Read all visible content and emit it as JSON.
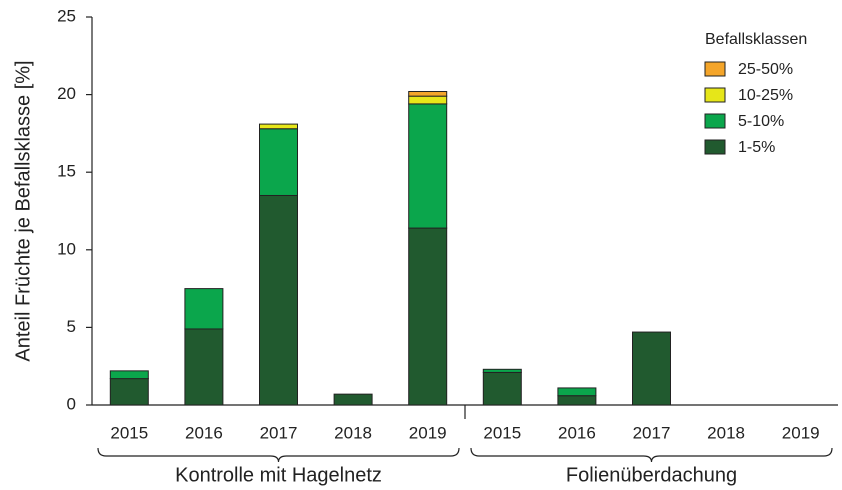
{
  "chart_data": {
    "type": "stacked_bar",
    "y_label": "Anteil Früchte je Befallsklasse [%]",
    "categories": [
      "2015",
      "2016",
      "2017",
      "2018",
      "2019",
      "2015",
      "2016",
      "2017",
      "2018",
      "2019"
    ],
    "groups": [
      "Kontrolle mit Hagelnetz",
      "Folienüberdachung"
    ],
    "legend_title": "Befallsklassen",
    "series": [
      {
        "name": "1-5%",
        "color": "#215a2f",
        "values": [
          1.7,
          4.9,
          13.5,
          0.7,
          11.4,
          2.1,
          0.6,
          4.7,
          0,
          0
        ]
      },
      {
        "name": "5-10%",
        "color": "#0ba64c",
        "values": [
          0.5,
          2.6,
          4.3,
          0,
          8.0,
          0.2,
          0.5,
          0,
          0,
          0
        ]
      },
      {
        "name": "10-25%",
        "color": "#e6e619",
        "values": [
          0,
          0,
          0.3,
          0,
          0.5,
          0,
          0,
          0,
          0,
          0
        ]
      },
      {
        "name": "25-50%",
        "color": "#f4a52a",
        "values": [
          0,
          0,
          0,
          0,
          0.3,
          0,
          0,
          0,
          0,
          0
        ]
      }
    ],
    "ylim": [
      0,
      25
    ],
    "yticks": [
      0,
      5,
      10,
      15,
      20,
      25
    ]
  }
}
